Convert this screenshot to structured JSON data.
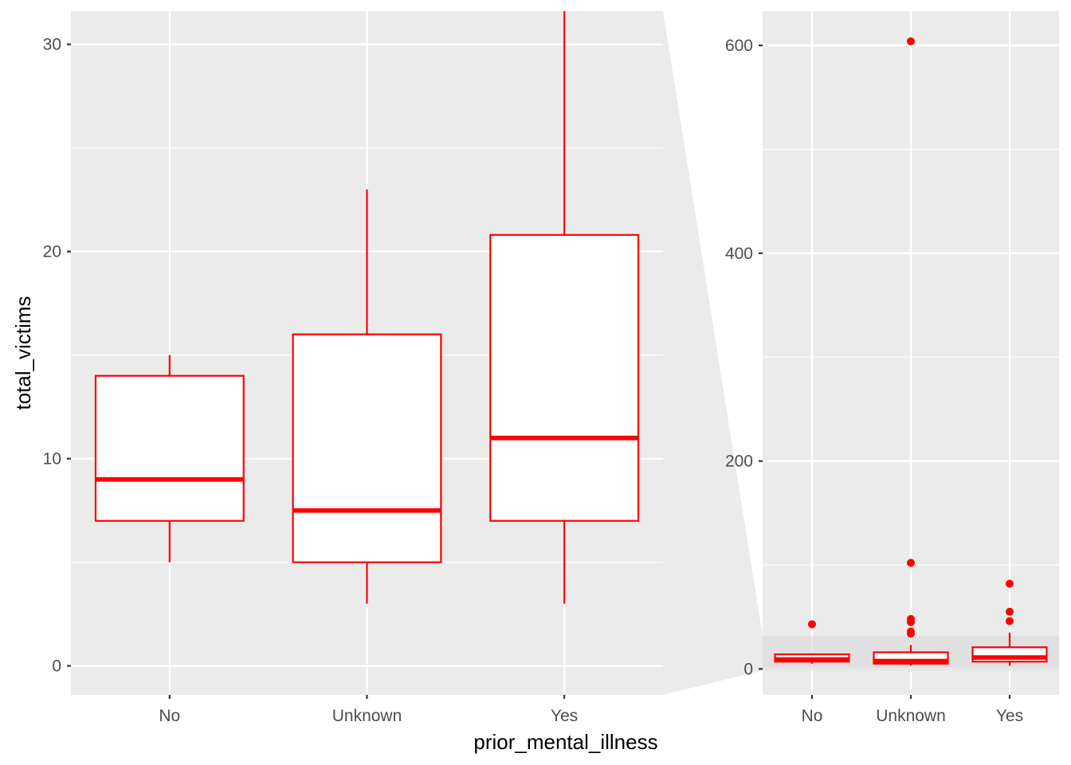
{
  "chart_data": {
    "type": "boxplot",
    "xlabel": "prior_mental_illness",
    "ylabel": "total_victims",
    "categories": [
      "No",
      "Unknown",
      "Yes"
    ],
    "colors": {
      "box_stroke": "#ff0000",
      "box_fill": "#ffffff",
      "panel_bg": "#ebebeb",
      "grid": "#ffffff",
      "zoom_band": "#d9d9d9"
    },
    "panels": [
      {
        "name": "zoomed",
        "ylim": [
          -1.4,
          31.6
        ],
        "y_ticks": [
          0,
          10,
          20,
          30
        ],
        "y_tick_labels": [
          "0",
          "10",
          "20",
          "30"
        ]
      },
      {
        "name": "full",
        "ylim": [
          -25,
          633
        ],
        "y_ticks": [
          0,
          200,
          400,
          600
        ],
        "y_tick_labels": [
          "0",
          "200",
          "400",
          "600"
        ],
        "zoom_range": [
          -1.4,
          31.6
        ]
      }
    ],
    "boxes": [
      {
        "category": "No",
        "whisker_low": 5,
        "q1": 7,
        "median": 9,
        "q3": 14,
        "whisker_high": 15,
        "outliers": [
          43
        ]
      },
      {
        "category": "Unknown",
        "whisker_low": 3,
        "q1": 5,
        "median": 7.5,
        "q3": 16,
        "whisker_high": 23,
        "outliers": [
          604,
          102,
          48,
          45,
          36,
          34
        ]
      },
      {
        "category": "Yes",
        "whisker_low": 3,
        "q1": 7,
        "median": 11,
        "q3": 20.8,
        "whisker_high": 35,
        "outliers": [
          82,
          55,
          46
        ]
      }
    ]
  }
}
